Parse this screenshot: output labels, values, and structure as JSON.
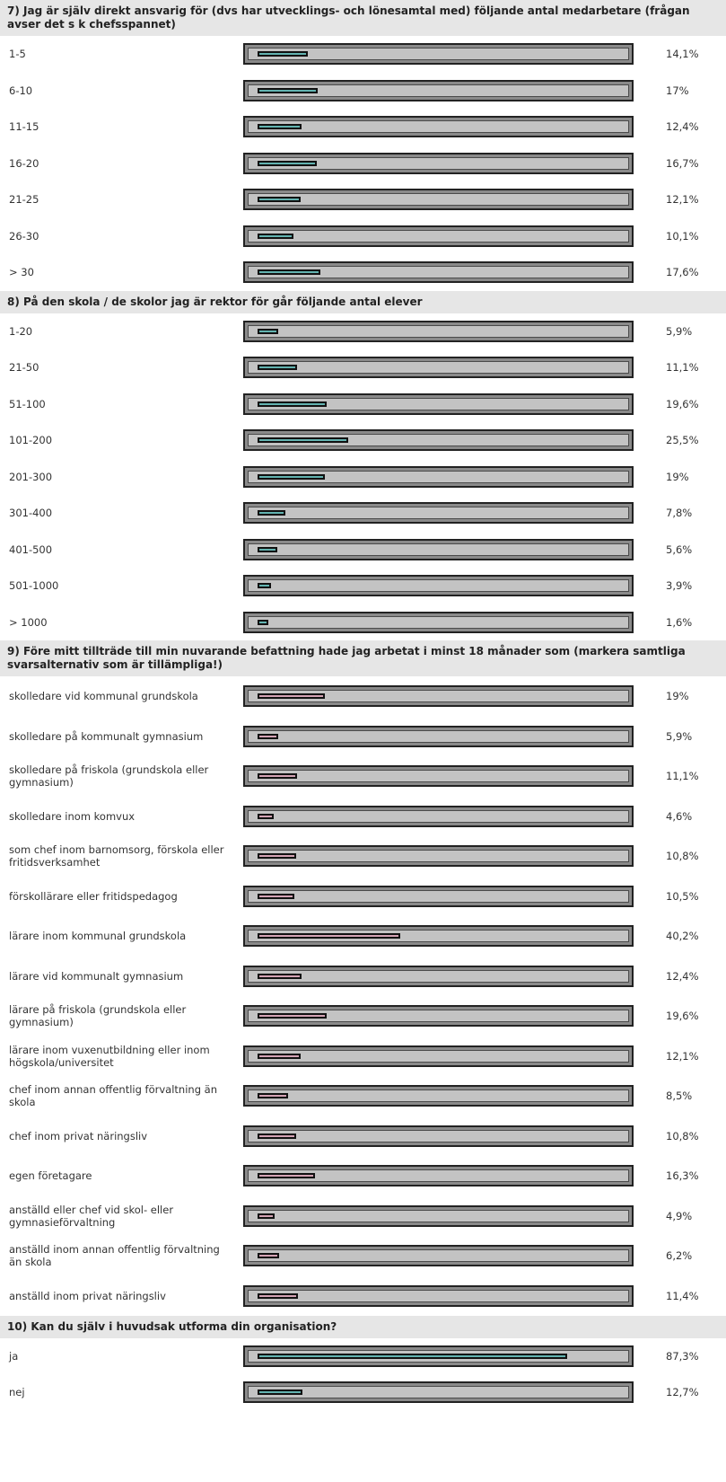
{
  "colors": {
    "teal_fill": "#62b3b0",
    "pink_fill": "#d4a3b4",
    "header_bg": "#e6e6e6"
  },
  "chart_data": [
    {
      "type": "bar",
      "title": "7) Jag är själv direkt ansvarig för (dvs har utvecklings- och lönesamtal med) följande antal medarbetare (frågan avser det s k chefsspannet)",
      "color": "teal",
      "categories": [
        "1-5",
        "6-10",
        "11-15",
        "16-20",
        "21-25",
        "26-30",
        "> 30"
      ],
      "values": [
        14.1,
        17,
        12.4,
        16.7,
        12.1,
        10.1,
        17.6
      ],
      "value_labels": [
        "14,1%",
        "17%",
        "12,4%",
        "16,7%",
        "12,1%",
        "10,1%",
        "17,6%"
      ],
      "xlim": [
        0,
        100
      ]
    },
    {
      "type": "bar",
      "title": "8) På den skola / de skolor jag är rektor för går följande antal elever",
      "color": "teal",
      "categories": [
        "1-20",
        "21-50",
        "51-100",
        "101-200",
        "201-300",
        "301-400",
        "401-500",
        "501-1000",
        "> 1000"
      ],
      "values": [
        5.9,
        11.1,
        19.6,
        25.5,
        19,
        7.8,
        5.6,
        3.9,
        1.6
      ],
      "value_labels": [
        "5,9%",
        "11,1%",
        "19,6%",
        "25,5%",
        "19%",
        "7,8%",
        "5,6%",
        "3,9%",
        "1,6%"
      ],
      "xlim": [
        0,
        100
      ]
    },
    {
      "type": "bar",
      "title": "9) Före mitt tillträde till min nuvarande befattning hade jag arbetat i minst 18 månader som (markera samtliga svarsalternativ som är tillämpliga!)",
      "color": "pink",
      "categories": [
        "skolledare vid kommunal grundskola",
        "skolledare på kommunalt gymnasium",
        "skolledare på friskola (grundskola eller gymnasium)",
        "skolledare inom komvux",
        "som chef inom barnomsorg, förskola eller fritidsverksamhet",
        "förskollärare eller fritidspedagog",
        "lärare inom kommunal grundskola",
        "lärare vid kommunalt gymnasium",
        "lärare på friskola (grundskola eller gymnasium)",
        "lärare inom vuxenutbildning eller inom högskola/universitet",
        "chef inom annan offentlig förvaltning än skola",
        "chef inom privat näringsliv",
        "egen företagare",
        "anställd eller chef vid skol- eller gymnasieförvaltning",
        "anställd inom annan offentlig förvaltning än skola",
        "anställd inom privat näringsliv"
      ],
      "values": [
        19,
        5.9,
        11.1,
        4.6,
        10.8,
        10.5,
        40.2,
        12.4,
        19.6,
        12.1,
        8.5,
        10.8,
        16.3,
        4.9,
        6.2,
        11.4
      ],
      "value_labels": [
        "19%",
        "5,9%",
        "11,1%",
        "4,6%",
        "10,8%",
        "10,5%",
        "40,2%",
        "12,4%",
        "19,6%",
        "12,1%",
        "8,5%",
        "10,8%",
        "16,3%",
        "4,9%",
        "6,2%",
        "11,4%"
      ],
      "xlim": [
        0,
        100
      ]
    },
    {
      "type": "bar",
      "title": "10) Kan du själv i huvudsak utforma din organisation?",
      "color": "teal",
      "categories": [
        "ja",
        "nej"
      ],
      "values": [
        87.3,
        12.7
      ],
      "value_labels": [
        "87,3%",
        "12,7%"
      ],
      "xlim": [
        0,
        100
      ]
    }
  ]
}
